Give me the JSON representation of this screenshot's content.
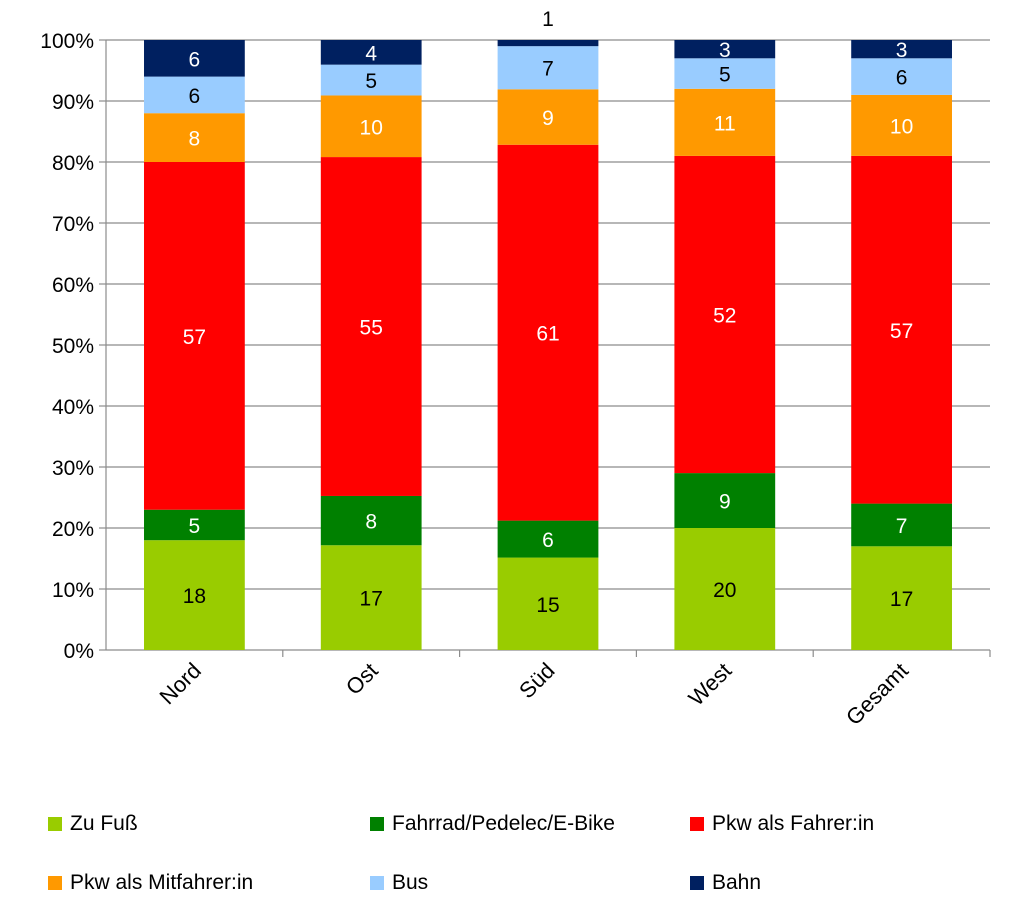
{
  "chart_data": {
    "type": "bar",
    "stacked": true,
    "normalized": true,
    "title": "",
    "xlabel": "",
    "ylabel": "",
    "ylim": [
      0,
      100
    ],
    "yticks": [
      "0%",
      "10%",
      "20%",
      "30%",
      "40%",
      "50%",
      "60%",
      "70%",
      "80%",
      "90%",
      "100%"
    ],
    "categories": [
      "Nord",
      "Ost",
      "Süd",
      "West",
      "Gesamt"
    ],
    "series": [
      {
        "name": "Zu Fuß",
        "color": "#99cc00",
        "label_color": "#000000",
        "values": [
          18,
          17,
          15,
          20,
          17
        ]
      },
      {
        "name": "Fahrrad/Pedelec/E-Bike",
        "color": "#008000",
        "label_color": "#ffffff",
        "values": [
          5,
          8,
          6,
          9,
          7
        ]
      },
      {
        "name": "Pkw als Fahrer:in",
        "color": "#ff0000",
        "label_color": "#ffffff",
        "values": [
          57,
          55,
          61,
          52,
          57
        ]
      },
      {
        "name": "Pkw als Mitfahrer:in",
        "color": "#ff9900",
        "label_color": "#ffffff",
        "values": [
          8,
          10,
          9,
          11,
          10
        ]
      },
      {
        "name": "Bus",
        "color": "#99ccff",
        "label_color": "#000000",
        "values": [
          6,
          5,
          7,
          5,
          6
        ]
      },
      {
        "name": "Bahn",
        "color": "#002060",
        "label_color": "#ffffff",
        "values": [
          6,
          4,
          1,
          3,
          3
        ]
      }
    ],
    "grid": true,
    "legend_position": "bottom"
  }
}
